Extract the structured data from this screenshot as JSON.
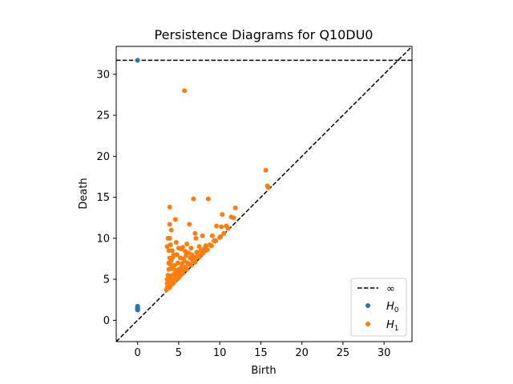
{
  "chart_data": {
    "type": "scatter",
    "title": "Persistence Diagrams for Q10DU0",
    "xlabel": "Birth",
    "ylabel": "Death",
    "xlim": [
      -2.6,
      33.4
    ],
    "ylim": [
      -2.6,
      33.4
    ],
    "xticks": [
      0,
      5,
      10,
      15,
      20,
      25,
      30
    ],
    "yticks": [
      0,
      5,
      10,
      15,
      20,
      25,
      30
    ],
    "grid": false,
    "legend_position": "bottom-right",
    "infinity_level": 31.7,
    "legend": {
      "infinity_label": "∞",
      "h0_label": "H",
      "h0_sub": "0",
      "h1_label": "H",
      "h1_sub": "1"
    },
    "colors": {
      "h0": "#1f77b4",
      "h1": "#ff7f0e",
      "line": "#000000"
    },
    "series": [
      {
        "name": "H0",
        "points": [
          [
            0,
            31.7
          ],
          [
            0,
            1.7
          ],
          [
            0,
            1.6
          ],
          [
            0,
            1.55
          ],
          [
            0,
            1.5
          ],
          [
            0,
            1.45
          ],
          [
            0,
            1.4
          ],
          [
            0,
            1.35
          ],
          [
            0,
            1.3
          ],
          [
            0,
            1.25
          ]
        ]
      },
      {
        "name": "H1",
        "points": [
          [
            5.7,
            28.0
          ],
          [
            15.6,
            18.3
          ],
          [
            15.8,
            16.4
          ],
          [
            15.9,
            16.2
          ],
          [
            3.9,
            13.8
          ],
          [
            6.8,
            14.8
          ],
          [
            8.6,
            14.8
          ],
          [
            11.9,
            13.7
          ],
          [
            11.4,
            12.6
          ],
          [
            11.7,
            12.5
          ],
          [
            10.3,
            12.9
          ],
          [
            4.6,
            12.3
          ],
          [
            3.9,
            11.7
          ],
          [
            6.3,
            11.7
          ],
          [
            9.6,
            11.5
          ],
          [
            10.2,
            11.4
          ],
          [
            10.8,
            11.5
          ],
          [
            4.1,
            11.0
          ],
          [
            3.7,
            10.0
          ],
          [
            3.9,
            10.0
          ],
          [
            7.0,
            10.6
          ],
          [
            7.1,
            10.0
          ],
          [
            7.9,
            10.3
          ],
          [
            9.1,
            10.3
          ],
          [
            10.1,
            10.2
          ],
          [
            3.6,
            9.0
          ],
          [
            4.0,
            9.2
          ],
          [
            4.7,
            9.5
          ],
          [
            5.0,
            8.8
          ],
          [
            5.3,
            8.7
          ],
          [
            5.5,
            8.9
          ],
          [
            6.0,
            9.3
          ],
          [
            6.5,
            8.8
          ],
          [
            7.5,
            9.0
          ],
          [
            8.3,
            9.1
          ],
          [
            8.8,
            9.2
          ],
          [
            9.3,
            9.7
          ],
          [
            3.8,
            8.5
          ],
          [
            4.2,
            8.5
          ],
          [
            4.4,
            8.0
          ],
          [
            4.8,
            8.0
          ],
          [
            5.8,
            8.4
          ],
          [
            6.2,
            8.2
          ],
          [
            6.6,
            8.0
          ],
          [
            7.2,
            8.3
          ],
          [
            7.7,
            8.5
          ],
          [
            8.1,
            8.7
          ],
          [
            3.9,
            7.6
          ],
          [
            4.1,
            7.3
          ],
          [
            4.3,
            7.7
          ],
          [
            5.2,
            7.6
          ],
          [
            5.6,
            7.5
          ],
          [
            5.9,
            7.9
          ],
          [
            6.4,
            7.6
          ],
          [
            6.9,
            7.7
          ],
          [
            7.4,
            7.9
          ],
          [
            7.8,
            8.1
          ],
          [
            3.8,
            7.0
          ],
          [
            4.0,
            6.8
          ],
          [
            4.5,
            6.7
          ],
          [
            4.9,
            7.0
          ],
          [
            5.4,
            6.9
          ],
          [
            5.7,
            7.2
          ],
          [
            6.1,
            7.0
          ],
          [
            6.7,
            7.2
          ],
          [
            7.0,
            7.4
          ],
          [
            3.8,
            6.2
          ],
          [
            4.2,
            6.3
          ],
          [
            4.6,
            6.1
          ],
          [
            5.0,
            6.2
          ],
          [
            5.3,
            6.4
          ],
          [
            5.8,
            6.5
          ],
          [
            6.3,
            6.8
          ],
          [
            3.7,
            5.5
          ],
          [
            4.0,
            5.4
          ],
          [
            4.4,
            5.6
          ],
          [
            4.8,
            5.7
          ],
          [
            5.1,
            5.9
          ],
          [
            5.5,
            6.0
          ],
          [
            3.6,
            5.0
          ],
          [
            3.9,
            5.1
          ],
          [
            4.3,
            5.0
          ],
          [
            4.7,
            5.3
          ],
          [
            5.2,
            5.5
          ],
          [
            3.6,
            4.5
          ],
          [
            3.8,
            4.6
          ],
          [
            4.1,
            4.7
          ],
          [
            4.5,
            4.8
          ],
          [
            4.9,
            5.1
          ],
          [
            3.6,
            4.0
          ],
          [
            3.8,
            4.2
          ],
          [
            4.0,
            4.3
          ],
          [
            4.2,
            4.4
          ],
          [
            4.4,
            4.6
          ],
          [
            3.5,
            3.7
          ],
          [
            3.7,
            3.9
          ],
          [
            3.9,
            4.0
          ],
          [
            5.0,
            5.2
          ],
          [
            5.5,
            5.7
          ],
          [
            6.0,
            6.2
          ],
          [
            6.5,
            6.7
          ],
          [
            7.0,
            7.1
          ],
          [
            7.5,
            7.7
          ],
          [
            8.0,
            8.2
          ],
          [
            8.5,
            8.6
          ],
          [
            9.0,
            9.1
          ],
          [
            9.5,
            9.7
          ],
          [
            10.0,
            10.1
          ],
          [
            10.5,
            10.6
          ],
          [
            11.0,
            11.2
          ]
        ]
      }
    ]
  }
}
